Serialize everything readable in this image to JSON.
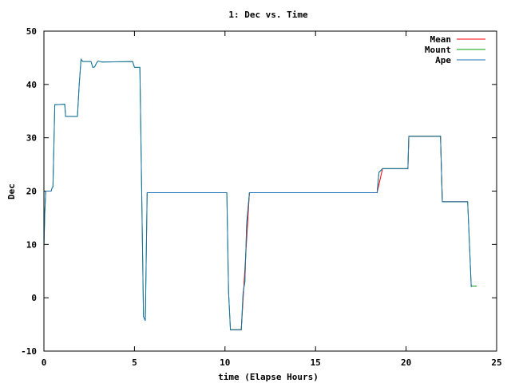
{
  "chart_data": {
    "type": "line",
    "title": "1: Dec vs. Time",
    "xlabel": "time (Elapse Hours)",
    "ylabel": "Dec",
    "xlim": [
      0,
      25
    ],
    "ylim": [
      -10,
      50
    ],
    "xticks": [
      0,
      5,
      10,
      15,
      20,
      25
    ],
    "yticks": [
      -10,
      0,
      10,
      20,
      30,
      40,
      50
    ],
    "grid": false,
    "legend_position": "top-right",
    "series": [
      {
        "name": "Mean",
        "color": "#ff0000",
        "points": [
          [
            10.3,
            -6.0
          ],
          [
            10.9,
            -6.0
          ],
          [
            11.35,
            19.7
          ],
          [
            18.4,
            19.7
          ],
          [
            18.7,
            24.2
          ],
          [
            20.1,
            24.2
          ],
          [
            20.15,
            30.3
          ],
          [
            21.9,
            30.3
          ],
          [
            22.0,
            18.0
          ],
          [
            23.4,
            18.0
          ]
        ]
      },
      {
        "name": "Mount",
        "color": "#00a000",
        "points": [
          [
            0.0,
            9.5
          ],
          [
            0.05,
            16
          ],
          [
            0.1,
            20.0
          ],
          [
            0.4,
            20.0
          ],
          [
            0.45,
            20.6
          ],
          [
            0.5,
            20.8
          ],
          [
            0.55,
            28.5
          ],
          [
            0.6,
            36.2
          ],
          [
            1.15,
            36.3
          ],
          [
            1.2,
            34.0
          ],
          [
            1.85,
            34.0
          ],
          [
            1.95,
            40.0
          ],
          [
            2.05,
            44.7
          ],
          [
            2.15,
            44.3
          ],
          [
            2.6,
            44.3
          ],
          [
            2.7,
            43.2
          ],
          [
            2.8,
            43.3
          ],
          [
            2.9,
            44.0
          ],
          [
            3.0,
            44.4
          ],
          [
            3.2,
            44.2
          ],
          [
            4.9,
            44.3
          ],
          [
            5.0,
            43.2
          ],
          [
            5.3,
            43.2
          ],
          [
            5.35,
            32.0
          ],
          [
            5.45,
            8.0
          ],
          [
            5.5,
            -3.5
          ],
          [
            5.6,
            -4.3
          ],
          [
            5.7,
            19.7
          ],
          [
            10.1,
            19.7
          ],
          [
            10.2,
            1.0
          ],
          [
            10.3,
            -6.0
          ],
          [
            10.9,
            -6.0
          ],
          [
            11.0,
            1.0
          ],
          [
            11.1,
            3.0
          ],
          [
            11.2,
            14.0
          ],
          [
            11.35,
            19.7
          ],
          [
            18.4,
            19.7
          ],
          [
            18.5,
            23.5
          ],
          [
            18.7,
            24.2
          ],
          [
            20.1,
            24.2
          ],
          [
            20.15,
            30.3
          ],
          [
            21.9,
            30.3
          ],
          [
            22.0,
            18.0
          ],
          [
            23.4,
            18.0
          ],
          [
            23.5,
            10.0
          ],
          [
            23.6,
            2.2
          ],
          [
            23.9,
            2.2
          ]
        ]
      },
      {
        "name": "Ape",
        "color": "#1f6fb4",
        "points": [
          [
            0.0,
            9.5
          ],
          [
            0.05,
            16
          ],
          [
            0.1,
            20.0
          ],
          [
            0.4,
            20.0
          ],
          [
            0.45,
            20.6
          ],
          [
            0.5,
            20.8
          ],
          [
            0.55,
            28.5
          ],
          [
            0.6,
            36.2
          ],
          [
            1.15,
            36.3
          ],
          [
            1.2,
            34.0
          ],
          [
            1.85,
            34.0
          ],
          [
            1.95,
            40.0
          ],
          [
            2.05,
            44.7
          ],
          [
            2.15,
            44.3
          ],
          [
            2.6,
            44.3
          ],
          [
            2.7,
            43.2
          ],
          [
            2.8,
            43.3
          ],
          [
            2.9,
            44.0
          ],
          [
            3.0,
            44.4
          ],
          [
            3.2,
            44.2
          ],
          [
            4.9,
            44.3
          ],
          [
            5.0,
            43.2
          ],
          [
            5.3,
            43.2
          ],
          [
            5.35,
            32.0
          ],
          [
            5.45,
            8.0
          ],
          [
            5.5,
            -3.5
          ],
          [
            5.6,
            -4.3
          ],
          [
            5.7,
            19.7
          ],
          [
            10.1,
            19.7
          ],
          [
            10.2,
            1.0
          ],
          [
            10.3,
            -6.0
          ],
          [
            10.9,
            -6.0
          ],
          [
            11.0,
            1.0
          ],
          [
            11.1,
            3.0
          ],
          [
            11.2,
            14.0
          ],
          [
            11.35,
            19.7
          ],
          [
            18.4,
            19.7
          ],
          [
            18.5,
            23.5
          ],
          [
            18.7,
            24.2
          ],
          [
            20.1,
            24.2
          ],
          [
            20.15,
            30.3
          ],
          [
            21.9,
            30.3
          ],
          [
            22.0,
            18.0
          ],
          [
            23.4,
            18.0
          ],
          [
            23.5,
            10.0
          ],
          [
            23.6,
            2.0
          ]
        ]
      }
    ]
  }
}
